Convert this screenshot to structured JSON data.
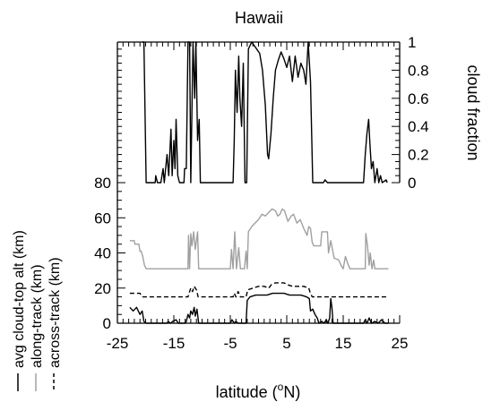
{
  "chart_data": {
    "type": "line",
    "title": "Hawaii",
    "xlabel": "latitude (",
    "xlabel_sup": "o",
    "xlabel_tail": "N)",
    "right_ylabel": "cloud fraction",
    "xlim": [
      -25,
      25
    ],
    "x_ticks": [
      -25,
      -15,
      -5,
      5,
      15,
      25
    ],
    "x_tick_labels": [
      "-25",
      "-15",
      "-5",
      "5",
      "15",
      "25"
    ],
    "lower_ylim": [
      0,
      80
    ],
    "lower_y_ticks": [
      0,
      20,
      40,
      60,
      80
    ],
    "lower_y_tick_labels": [
      "0",
      "20",
      "40",
      "60",
      "80"
    ],
    "right_ylim": [
      0,
      1
    ],
    "right_y_ticks": [
      0,
      0.2,
      0.4,
      0.6,
      0.8,
      1
    ],
    "right_y_tick_labels": [
      "0",
      "0.2",
      "0.4",
      "0.6",
      "0.8",
      "1"
    ],
    "legend": [
      {
        "label": "avg cloud-top alt (km)",
        "style": "solid",
        "color": "#000000"
      },
      {
        "label": "along-track (km)",
        "style": "solid",
        "color": "#a0a0a0"
      },
      {
        "label": "across-track (km)",
        "style": "dashed",
        "color": "#000000"
      }
    ],
    "series": [
      {
        "name": "cloud fraction",
        "axis": "right",
        "color": "#000000",
        "dash": false,
        "points": [
          [
            -20.6,
            1
          ],
          [
            -20.3,
            1
          ],
          [
            -19.9,
            0
          ],
          [
            -18.3,
            0
          ],
          [
            -18.2,
            0.05
          ],
          [
            -17.9,
            0
          ],
          [
            -17.3,
            0
          ],
          [
            -16.9,
            0.1
          ],
          [
            -16.7,
            0
          ],
          [
            -16.2,
            0.2
          ],
          [
            -15.9,
            0.05
          ],
          [
            -15.5,
            0.38
          ],
          [
            -15.3,
            0.05
          ],
          [
            -15.0,
            0.3
          ],
          [
            -14.8,
            0.1
          ],
          [
            -14.6,
            0.45
          ],
          [
            -14.3,
            0.05
          ],
          [
            -14.0,
            0
          ],
          [
            -13.2,
            0
          ],
          [
            -13.1,
            0.1
          ],
          [
            -12.8,
            0.1
          ],
          [
            -12.5,
            1
          ],
          [
            -12.2,
            1
          ],
          [
            -12.0,
            0
          ],
          [
            -11.6,
            1
          ],
          [
            -11.3,
            0.6
          ],
          [
            -11.1,
            1
          ],
          [
            -10.8,
            0.3
          ],
          [
            -10.5,
            0.45
          ],
          [
            -10.3,
            0
          ],
          [
            -4.5,
            0
          ],
          [
            -4.3,
            0.3
          ],
          [
            -4.1,
            0.8
          ],
          [
            -3.8,
            0.5
          ],
          [
            -3.5,
            0.9
          ],
          [
            -3.3,
            0.6
          ],
          [
            -3.0,
            0.4
          ],
          [
            -2.7,
            0.85
          ],
          [
            -2.4,
            0
          ],
          [
            -2.1,
            0
          ],
          [
            -1.8,
            0.95
          ],
          [
            -1.2,
            1
          ],
          [
            -0.5,
            0.96
          ],
          [
            0.2,
            0.92
          ],
          [
            0.7,
            0.8
          ],
          [
            1.2,
            0.55
          ],
          [
            1.6,
            0.2
          ],
          [
            1.8,
            0.17
          ],
          [
            2.2,
            0.35
          ],
          [
            2.6,
            0.6
          ],
          [
            3.0,
            0.8
          ],
          [
            3.5,
            0.87
          ],
          [
            4.0,
            0.93
          ],
          [
            4.5,
            0.88
          ],
          [
            5.0,
            0.82
          ],
          [
            5.5,
            0.9
          ],
          [
            6.0,
            0.72
          ],
          [
            6.5,
            0.9
          ],
          [
            7.0,
            0.75
          ],
          [
            7.5,
            0.85
          ],
          [
            8.0,
            0.8
          ],
          [
            8.4,
            0.7
          ],
          [
            8.8,
            1
          ],
          [
            9.2,
            0.72
          ],
          [
            9.6,
            0
          ],
          [
            11.5,
            0
          ],
          [
            11.8,
            0.02
          ],
          [
            12.2,
            0
          ],
          [
            18.6,
            0
          ],
          [
            18.9,
            0.2
          ],
          [
            19.2,
            0.35
          ],
          [
            19.5,
            0.45
          ],
          [
            19.7,
            0.3
          ],
          [
            20.0,
            0.1
          ],
          [
            20.3,
            0.15
          ],
          [
            20.6,
            0
          ],
          [
            21.0,
            0.1
          ],
          [
            21.3,
            0
          ],
          [
            21.6,
            0.05
          ],
          [
            21.9,
            0
          ],
          [
            22.6,
            0.02
          ],
          [
            22.8,
            0
          ]
        ]
      },
      {
        "name": "along-track (km)",
        "axis": "left",
        "color": "#a0a0a0",
        "dash": false,
        "points": [
          [
            -22.8,
            47
          ],
          [
            -22.0,
            47
          ],
          [
            -21.9,
            45
          ],
          [
            -21.2,
            45
          ],
          [
            -21.0,
            41
          ],
          [
            -20.8,
            41
          ],
          [
            -20.5,
            38
          ],
          [
            -20.2,
            33
          ],
          [
            -19.9,
            31
          ],
          [
            -12.5,
            31
          ],
          [
            -12.4,
            50
          ],
          [
            -12.2,
            31
          ],
          [
            -12.0,
            51
          ],
          [
            -11.8,
            44
          ],
          [
            -11.5,
            52
          ],
          [
            -11.2,
            42
          ],
          [
            -10.8,
            52
          ],
          [
            -10.6,
            31
          ],
          [
            -5.0,
            31
          ],
          [
            -4.8,
            42
          ],
          [
            -4.5,
            31
          ],
          [
            -4.2,
            52
          ],
          [
            -3.9,
            31
          ],
          [
            -3.5,
            43
          ],
          [
            -3.2,
            31
          ],
          [
            -2.5,
            31
          ],
          [
            -2.2,
            41
          ],
          [
            -2.0,
            31
          ],
          [
            -1.8,
            52
          ],
          [
            -1.2,
            55
          ],
          [
            -0.6,
            57
          ],
          [
            0.0,
            59
          ],
          [
            0.6,
            62
          ],
          [
            1.2,
            61
          ],
          [
            1.8,
            63
          ],
          [
            2.4,
            65
          ],
          [
            3.0,
            64
          ],
          [
            3.4,
            61
          ],
          [
            3.8,
            62
          ],
          [
            4.2,
            65
          ],
          [
            4.6,
            64
          ],
          [
            5.2,
            58
          ],
          [
            5.8,
            61
          ],
          [
            6.2,
            62
          ],
          [
            6.8,
            57
          ],
          [
            7.4,
            59
          ],
          [
            8.0,
            54
          ],
          [
            8.6,
            50
          ],
          [
            8.9,
            55
          ],
          [
            9.2,
            54
          ],
          [
            9.5,
            46
          ],
          [
            9.8,
            44
          ],
          [
            11.0,
            44
          ],
          [
            11.2,
            52
          ],
          [
            12.2,
            52
          ],
          [
            12.4,
            40
          ],
          [
            12.8,
            47
          ],
          [
            13.4,
            37
          ],
          [
            14.2,
            36
          ],
          [
            14.6,
            33
          ],
          [
            15.0,
            31
          ],
          [
            15.4,
            38
          ],
          [
            15.8,
            34
          ],
          [
            16.2,
            31
          ],
          [
            18.9,
            31
          ],
          [
            19.0,
            51
          ],
          [
            19.3,
            44
          ],
          [
            19.6,
            33
          ],
          [
            19.8,
            40
          ],
          [
            20.1,
            31
          ],
          [
            20.4,
            36
          ],
          [
            20.6,
            31
          ],
          [
            23.0,
            31
          ]
        ]
      },
      {
        "name": "across-track (km)",
        "axis": "left",
        "color": "#000000",
        "dash": true,
        "points": [
          [
            -22.8,
            17
          ],
          [
            -21.0,
            17
          ],
          [
            -20.8,
            16
          ],
          [
            -20.5,
            15
          ],
          [
            -12.5,
            15
          ],
          [
            -12.2,
            18
          ],
          [
            -12.0,
            20
          ],
          [
            -11.7,
            18
          ],
          [
            -11.4,
            21
          ],
          [
            -11.0,
            19
          ],
          [
            -10.7,
            15
          ],
          [
            -4.5,
            15
          ],
          [
            -4.3,
            17
          ],
          [
            -4.0,
            15
          ],
          [
            -3.6,
            18
          ],
          [
            -3.2,
            15
          ],
          [
            -2.2,
            15
          ],
          [
            -1.9,
            19
          ],
          [
            -1.0,
            20
          ],
          [
            0.0,
            21
          ],
          [
            1.0,
            21
          ],
          [
            1.8,
            20
          ],
          [
            2.3,
            22
          ],
          [
            3.0,
            23
          ],
          [
            4.5,
            23
          ],
          [
            5.0,
            22
          ],
          [
            6.0,
            21
          ],
          [
            7.0,
            21
          ],
          [
            8.0,
            21
          ],
          [
            8.9,
            20
          ],
          [
            9.1,
            18
          ],
          [
            9.5,
            15
          ],
          [
            23.0,
            15
          ]
        ]
      },
      {
        "name": "avg cloud-top alt (km)",
        "axis": "left",
        "color": "#000000",
        "dash": false,
        "points": [
          [
            -22.8,
            9
          ],
          [
            -22.2,
            7
          ],
          [
            -21.6,
            9
          ],
          [
            -21.0,
            5
          ],
          [
            -20.6,
            7
          ],
          [
            -20.3,
            1
          ],
          [
            -19.9,
            0
          ],
          [
            -16.2,
            0
          ],
          [
            -16.0,
            1
          ],
          [
            -15.6,
            0
          ],
          [
            -15.2,
            1
          ],
          [
            -14.6,
            2
          ],
          [
            -14.2,
            0
          ],
          [
            -13.0,
            0
          ],
          [
            -12.8,
            1
          ],
          [
            -12.5,
            5
          ],
          [
            -12.2,
            3
          ],
          [
            -12.0,
            7
          ],
          [
            -11.7,
            5
          ],
          [
            -11.4,
            9
          ],
          [
            -11.2,
            4
          ],
          [
            -10.9,
            8
          ],
          [
            -10.6,
            0
          ],
          [
            -5.0,
            0
          ],
          [
            -4.7,
            2
          ],
          [
            -4.3,
            0
          ],
          [
            -4.0,
            1
          ],
          [
            -3.6,
            0
          ],
          [
            -2.2,
            0
          ],
          [
            -2.0,
            13
          ],
          [
            -1.5,
            15
          ],
          [
            -0.5,
            16
          ],
          [
            0.5,
            16
          ],
          [
            1.5,
            16
          ],
          [
            2.5,
            17
          ],
          [
            3.5,
            17
          ],
          [
            4.5,
            17
          ],
          [
            5.5,
            16
          ],
          [
            6.5,
            16
          ],
          [
            7.5,
            16
          ],
          [
            8.5,
            15
          ],
          [
            9.0,
            14
          ],
          [
            9.2,
            7
          ],
          [
            9.6,
            8
          ],
          [
            10.0,
            5
          ],
          [
            10.4,
            3
          ],
          [
            10.7,
            0
          ],
          [
            11.2,
            1
          ],
          [
            11.6,
            0
          ],
          [
            12.0,
            2
          ],
          [
            12.3,
            0
          ],
          [
            12.6,
            3
          ],
          [
            12.8,
            14
          ],
          [
            13.0,
            9
          ],
          [
            13.2,
            0
          ],
          [
            18.6,
            0
          ],
          [
            18.9,
            2
          ],
          [
            19.2,
            0
          ],
          [
            19.6,
            3
          ],
          [
            20.0,
            0
          ],
          [
            20.6,
            1
          ],
          [
            21.2,
            0
          ],
          [
            21.8,
            2
          ],
          [
            22.4,
            0
          ],
          [
            23.0,
            0
          ]
        ]
      }
    ]
  }
}
